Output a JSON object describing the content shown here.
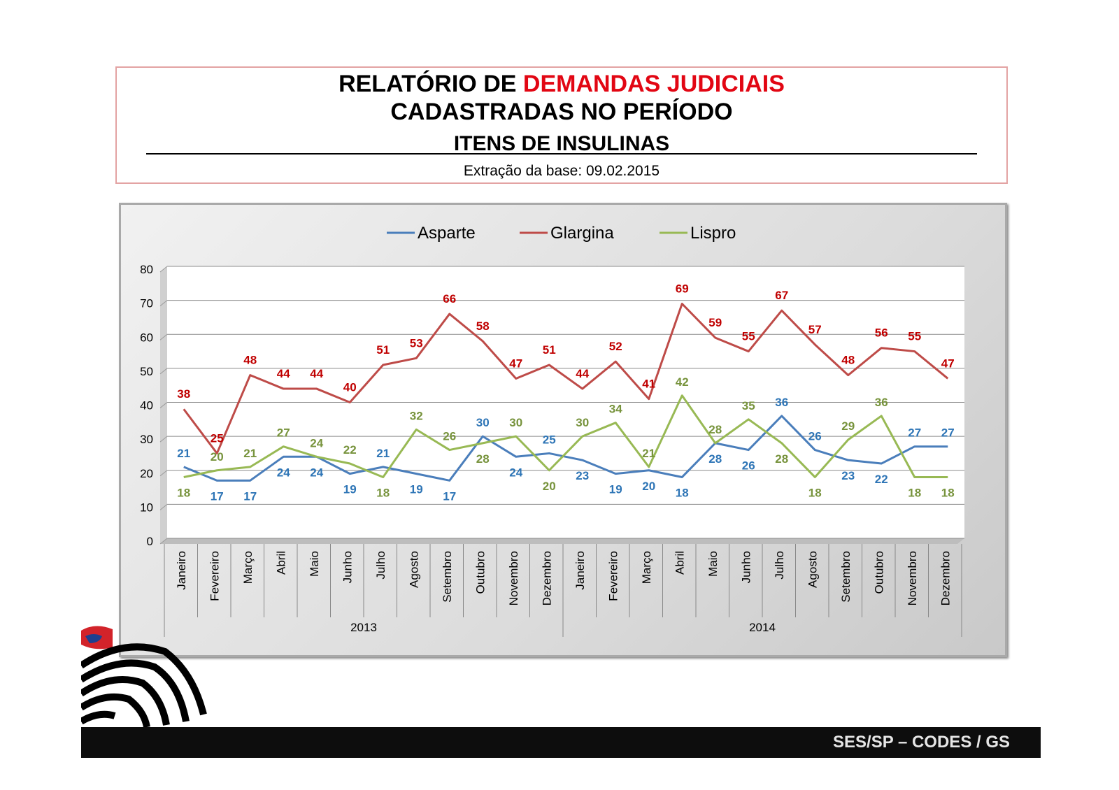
{
  "header": {
    "title_part1": "RELATÓRIO DE ",
    "title_part2_red": "DEMANDAS JUDICIAIS",
    "title_line2": "CADASTRADAS NO PERÍODO",
    "subtitle": "ITENS DE INSULINAS",
    "extraction": "Extração da base: 09.02.2015"
  },
  "footer": {
    "text": "SES/SP – CODES / GS"
  },
  "colors": {
    "asparte": "#4a7ebb",
    "glargina": "#be4b48",
    "lispro": "#98b954",
    "label_asparte": "#2e75b6",
    "label_glargina": "#c00000",
    "label_lispro": "#77933c",
    "title_red": "#e20613"
  },
  "chart_data": {
    "type": "line",
    "title": "",
    "xlabel": "",
    "ylabel": "",
    "ylim": [
      0,
      80
    ],
    "yticks": [
      "0",
      "10",
      "20",
      "30",
      "40",
      "50",
      "60",
      "70",
      "80"
    ],
    "legend_position": "top",
    "categories": [
      "Janeiro",
      "Fevereiro",
      "Março",
      "Abril",
      "Maio",
      "Junho",
      "Julho",
      "Agosto",
      "Setembro",
      "Outubro",
      "Novembro",
      "Dezembro",
      "Janeiro",
      "Fevereiro",
      "Março",
      "Abril",
      "Maio",
      "Junho",
      "Julho",
      "Agosto",
      "Setembro",
      "Outubro",
      "Novembro",
      "Dezembro"
    ],
    "groups": [
      {
        "label": "2013",
        "count": 12
      },
      {
        "label": "2014",
        "count": 12
      }
    ],
    "series": [
      {
        "name": "Asparte",
        "key": "asparte",
        "values": [
          21,
          17,
          17,
          24,
          24,
          19,
          21,
          19,
          17,
          30,
          24,
          25,
          23,
          19,
          20,
          18,
          28,
          26,
          36,
          26,
          23,
          22,
          27,
          27
        ],
        "labels": [
          "21",
          "17",
          "17",
          "24",
          "24",
          "19",
          "21",
          "19",
          "17",
          "30",
          "24",
          "25",
          "23",
          "19",
          "20",
          "18",
          "28",
          "26",
          "36",
          "26",
          "23",
          "22",
          "27",
          "27"
        ]
      },
      {
        "name": "Glargina",
        "key": "glargina",
        "values": [
          38,
          25,
          48,
          44,
          44,
          40,
          51,
          53,
          66,
          58,
          47,
          51,
          44,
          52,
          41,
          69,
          59,
          55,
          67,
          57,
          48,
          56,
          55,
          47
        ],
        "labels": [
          "38",
          "25",
          "48",
          "44",
          "44",
          "40",
          "51",
          "53",
          "66",
          "58",
          "47",
          "51",
          "44",
          "52",
          "41",
          "69",
          "59",
          "55",
          "67",
          "57",
          "48",
          "56",
          "55",
          "47"
        ]
      },
      {
        "name": "Lispro",
        "key": "lispro",
        "values": [
          18,
          20,
          21,
          27,
          24,
          22,
          18,
          32,
          26,
          28,
          30,
          20,
          30,
          34,
          21,
          42,
          28,
          35,
          28,
          18,
          29,
          36,
          18,
          18
        ],
        "labels": [
          "18",
          "20",
          "21",
          "27",
          "24",
          "22",
          "18",
          "32",
          "26",
          "28",
          "30",
          "20",
          "30",
          "34",
          "21",
          "42",
          "28",
          "35",
          "28",
          "18",
          "29",
          "36",
          "18",
          "18"
        ]
      }
    ]
  }
}
